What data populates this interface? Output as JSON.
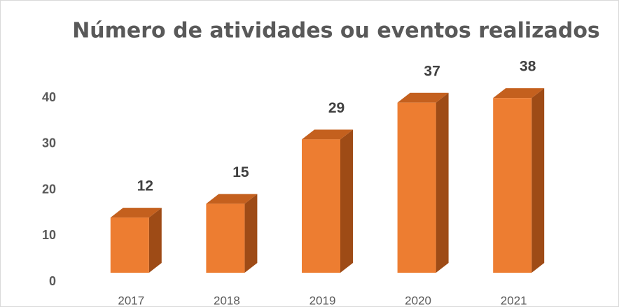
{
  "chart_data": {
    "type": "bar",
    "title": "Número de atividades ou eventos realizados",
    "categories": [
      "2017",
      "2018",
      "2019",
      "2020",
      "2021"
    ],
    "values": [
      12,
      15,
      29,
      37,
      38
    ],
    "color": "#ed7d31",
    "ylim": [
      0,
      40
    ],
    "yticks": [
      0,
      10,
      20,
      30,
      40
    ],
    "grid": false
  }
}
